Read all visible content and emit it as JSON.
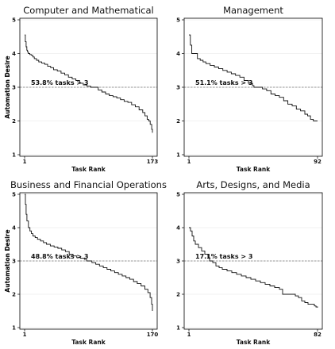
{
  "chart_data": [
    {
      "type": "line",
      "title": "Computer and Mathematical",
      "xlabel": "Task Rank",
      "ylabel": "Automation Desire",
      "x_ticks": [
        "1",
        "173"
      ],
      "y_ticks": [
        "1",
        "2",
        "3",
        "4",
        "5"
      ],
      "ylim": [
        1,
        5
      ],
      "xlim": [
        1,
        173
      ],
      "threshold": 3,
      "annotation": "53.8% tasks > 3",
      "grid": true,
      "x": [
        1,
        2,
        3,
        4,
        5,
        6,
        8,
        10,
        12,
        14,
        17,
        20,
        24,
        28,
        32,
        36,
        40,
        45,
        50,
        55,
        60,
        65,
        70,
        75,
        80,
        85,
        90,
        93,
        96,
        100,
        105,
        110,
        115,
        120,
        125,
        130,
        135,
        140,
        145,
        150,
        155,
        160,
        163,
        166,
        168,
        170,
        172,
        173
      ],
      "values": [
        4.55,
        4.35,
        4.2,
        4.1,
        4.05,
        4.0,
        3.97,
        3.95,
        3.9,
        3.85,
        3.8,
        3.75,
        3.72,
        3.68,
        3.62,
        3.58,
        3.52,
        3.48,
        3.42,
        3.37,
        3.3,
        3.25,
        3.2,
        3.12,
        3.07,
        3.03,
        3.0,
        3.0,
        3.0,
        2.92,
        2.86,
        2.8,
        2.75,
        2.72,
        2.68,
        2.63,
        2.58,
        2.55,
        2.48,
        2.42,
        2.33,
        2.25,
        2.15,
        2.05,
        2.0,
        1.9,
        1.75,
        1.65
      ]
    },
    {
      "type": "line",
      "title": "Management",
      "xlabel": "Task Rank",
      "ylabel": "Automation Desire",
      "x_ticks": [
        "1",
        "92"
      ],
      "y_ticks": [
        "1",
        "2",
        "3",
        "4",
        "5"
      ],
      "ylim": [
        1,
        5
      ],
      "xlim": [
        1,
        92
      ],
      "threshold": 3,
      "annotation": "51.1% tasks > 3",
      "grid": true,
      "x": [
        1,
        2,
        3,
        5,
        7,
        9,
        11,
        13,
        16,
        19,
        22,
        25,
        28,
        31,
        34,
        37,
        40,
        43,
        46,
        47,
        50,
        53,
        56,
        59,
        62,
        65,
        68,
        71,
        74,
        77,
        80,
        83,
        85,
        87,
        89,
        90,
        91,
        92
      ],
      "values": [
        4.55,
        4.25,
        4.0,
        4.0,
        3.85,
        3.8,
        3.75,
        3.7,
        3.65,
        3.6,
        3.55,
        3.5,
        3.45,
        3.4,
        3.35,
        3.3,
        3.2,
        3.12,
        3.05,
        3.0,
        3.0,
        2.95,
        2.9,
        2.8,
        2.75,
        2.7,
        2.6,
        2.5,
        2.45,
        2.35,
        2.3,
        2.2,
        2.15,
        2.05,
        2.0,
        2.0,
        2.0,
        2.0
      ]
    },
    {
      "type": "line",
      "title": "Business and Financial Operations",
      "xlabel": "Task Rank",
      "ylabel": "Automation Desire",
      "x_ticks": [
        "1",
        "170"
      ],
      "y_ticks": [
        "1",
        "2",
        "3",
        "4",
        "5"
      ],
      "ylim": [
        1,
        5
      ],
      "xlim": [
        1,
        170
      ],
      "threshold": 3,
      "annotation": "48.8% tasks > 3",
      "grid": true,
      "x": [
        1,
        2,
        3,
        4,
        6,
        8,
        10,
        12,
        15,
        18,
        22,
        26,
        30,
        35,
        40,
        45,
        50,
        55,
        60,
        65,
        70,
        75,
        80,
        83,
        86,
        90,
        95,
        100,
        105,
        110,
        115,
        120,
        125,
        130,
        135,
        140,
        145,
        150,
        155,
        160,
        164,
        167,
        169,
        170
      ],
      "values": [
        5.0,
        4.7,
        4.4,
        4.2,
        4.0,
        3.9,
        3.82,
        3.75,
        3.7,
        3.65,
        3.6,
        3.55,
        3.5,
        3.45,
        3.42,
        3.38,
        3.33,
        3.28,
        3.2,
        3.15,
        3.1,
        3.08,
        3.05,
        3.0,
        3.0,
        2.95,
        2.9,
        2.85,
        2.8,
        2.75,
        2.7,
        2.65,
        2.6,
        2.55,
        2.5,
        2.45,
        2.38,
        2.32,
        2.25,
        2.15,
        2.05,
        1.9,
        1.7,
        1.5
      ]
    },
    {
      "type": "line",
      "title": "Arts, Designs, and Media",
      "xlabel": "Task Rank",
      "ylabel": "Automation Desire",
      "x_ticks": [
        "1",
        "82"
      ],
      "y_ticks": [
        "1",
        "2",
        "3",
        "4",
        "5"
      ],
      "ylim": [
        1,
        5
      ],
      "xlim": [
        1,
        82
      ],
      "threshold": 3,
      "annotation": "17.1% tasks > 3",
      "grid": true,
      "x": [
        1,
        2,
        3,
        4,
        5,
        7,
        9,
        11,
        13,
        14,
        16,
        18,
        20,
        22,
        25,
        28,
        31,
        34,
        37,
        40,
        43,
        46,
        49,
        52,
        55,
        58,
        60,
        63,
        66,
        68,
        70,
        72,
        74,
        76,
        78,
        80,
        81,
        82
      ],
      "values": [
        4.0,
        3.9,
        3.75,
        3.6,
        3.5,
        3.4,
        3.3,
        3.2,
        3.1,
        3.0,
        2.95,
        2.85,
        2.8,
        2.75,
        2.7,
        2.65,
        2.6,
        2.55,
        2.5,
        2.45,
        2.4,
        2.35,
        2.3,
        2.25,
        2.2,
        2.15,
        2.0,
        2.0,
        2.0,
        1.95,
        1.9,
        1.8,
        1.75,
        1.7,
        1.7,
        1.65,
        1.62,
        1.6
      ]
    }
  ]
}
